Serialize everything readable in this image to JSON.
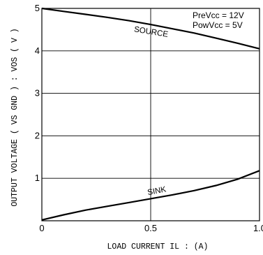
{
  "chart_data": {
    "type": "line",
    "title": "",
    "xlabel": "LOAD CURRENT  IL : (A)",
    "ylabel": "OUTPUT VOLTAGE ( VS GND ) : VOS ( V )",
    "xlim": [
      0,
      1.0
    ],
    "ylim": [
      0,
      5
    ],
    "x_ticks": [
      {
        "value": 0,
        "label": "0"
      },
      {
        "value": 0.5,
        "label": "0.5"
      },
      {
        "value": 1.0,
        "label": "1.0"
      }
    ],
    "y_ticks": [
      {
        "value": 0,
        "label": ""
      },
      {
        "value": 1,
        "label": "1"
      },
      {
        "value": 2,
        "label": "2"
      },
      {
        "value": 3,
        "label": "3"
      },
      {
        "value": 4,
        "label": "4"
      },
      {
        "value": 5,
        "label": "5"
      }
    ],
    "grid": true,
    "conditions": [
      "PreVcc = 12V",
      "PowVcc = 5V"
    ],
    "series": [
      {
        "name": "SOURCE",
        "x": [
          0,
          0.1,
          0.2,
          0.3,
          0.4,
          0.5,
          0.6,
          0.7,
          0.8,
          0.9,
          1.0
        ],
        "y": [
          5.0,
          4.93,
          4.86,
          4.79,
          4.71,
          4.62,
          4.52,
          4.42,
          4.3,
          4.18,
          4.05
        ]
      },
      {
        "name": "SINK",
        "x": [
          0,
          0.1,
          0.2,
          0.3,
          0.4,
          0.5,
          0.6,
          0.7,
          0.8,
          0.9,
          1.0
        ],
        "y": [
          0.02,
          0.14,
          0.25,
          0.34,
          0.43,
          0.52,
          0.61,
          0.71,
          0.83,
          0.98,
          1.18
        ]
      }
    ]
  }
}
